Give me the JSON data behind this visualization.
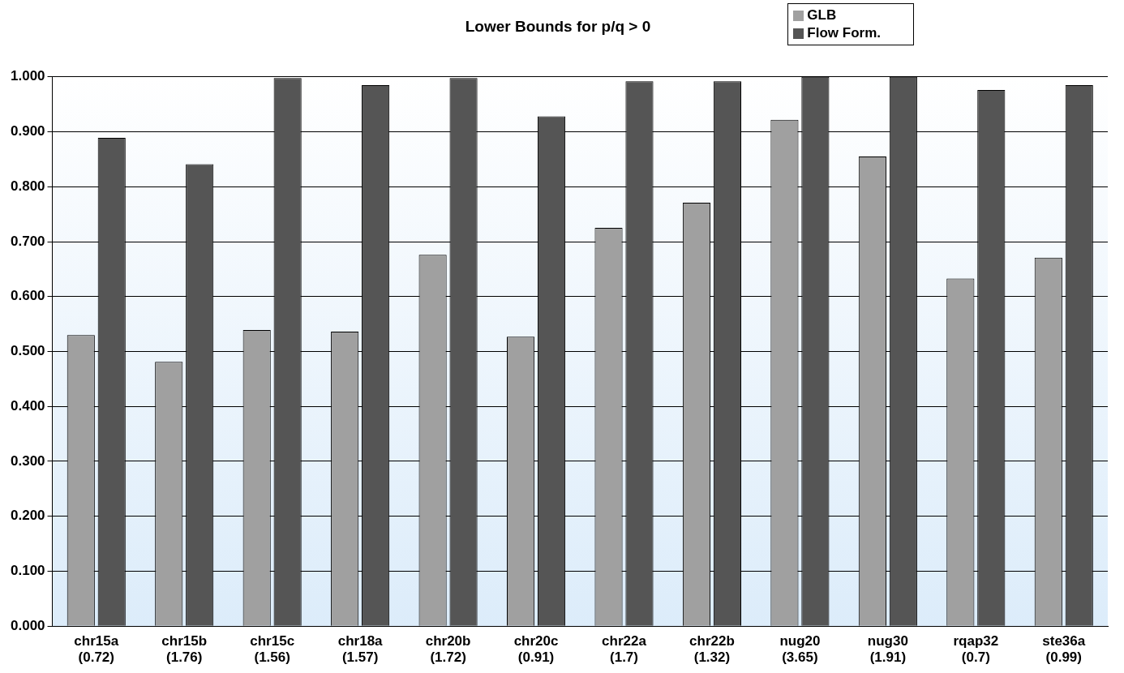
{
  "chart_data": {
    "type": "bar",
    "title": "Lower Bounds for p/q > 0",
    "categories": [
      "chr15a (0.72)",
      "chr15b (1.76)",
      "chr15c (1.56)",
      "chr18a (1.57)",
      "chr20b (1.72)",
      "chr20c (0.91)",
      "chr22a (1.7)",
      "chr22b (1.32)",
      "nug20 (3.65)",
      "nug30 (1.91)",
      "rqap32 (0.7)",
      "ste36a (0.99)"
    ],
    "series": [
      {
        "name": "GLB",
        "color": "#a0a0a0",
        "values": [
          0.53,
          0.481,
          0.539,
          0.536,
          0.676,
          0.527,
          0.725,
          0.771,
          0.922,
          0.855,
          0.633,
          0.671
        ]
      },
      {
        "name": "Flow Form.",
        "color": "#555555",
        "values": [
          0.889,
          0.841,
          0.998,
          0.985,
          0.998,
          0.928,
          0.992,
          0.992,
          1.0,
          1.0,
          0.976,
          0.985
        ]
      }
    ],
    "ylim": [
      0,
      1
    ],
    "yticks": [
      {
        "value": 0,
        "label": "0.000"
      },
      {
        "value": 0.1,
        "label": "0.100"
      },
      {
        "value": 0.2,
        "label": "0.200"
      },
      {
        "value": 0.3,
        "label": "0.300"
      },
      {
        "value": 0.4,
        "label": "0.400"
      },
      {
        "value": 0.5,
        "label": "0.500"
      },
      {
        "value": 0.6,
        "label": "0.600"
      },
      {
        "value": 0.7,
        "label": "0.700"
      },
      {
        "value": 0.8,
        "label": "0.800"
      },
      {
        "value": 0.9,
        "label": "0.900"
      },
      {
        "value": 1,
        "label": "1.000"
      }
    ],
    "grid": "y",
    "legend": "top right"
  }
}
